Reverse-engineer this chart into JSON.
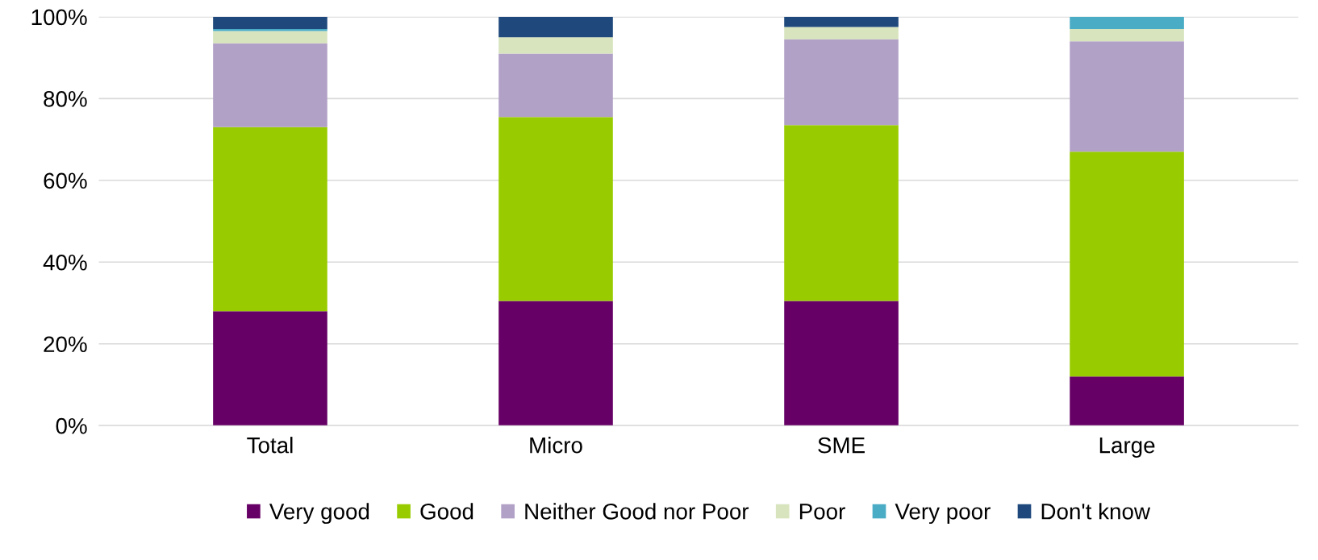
{
  "chart_data": {
    "type": "bar",
    "stacked": true,
    "categories": [
      "Total",
      "Micro",
      "SME",
      "Large"
    ],
    "series": [
      {
        "name": "Very good",
        "color": "#660066",
        "values": [
          28,
          30.5,
          30.5,
          12
        ]
      },
      {
        "name": "Good",
        "color": "#99cc00",
        "values": [
          45,
          45,
          43,
          55
        ]
      },
      {
        "name": "Neither Good nor Poor",
        "color": "#b2a1c7",
        "values": [
          20.5,
          15.5,
          21,
          27
        ]
      },
      {
        "name": "Poor",
        "color": "#d7e4bd",
        "values": [
          3,
          4,
          3,
          3
        ]
      },
      {
        "name": "Very poor",
        "color": "#4bacc6",
        "values": [
          0.5,
          0,
          0,
          3
        ]
      },
      {
        "name": "Don't know",
        "color": "#1f497d",
        "values": [
          3,
          5,
          2.5,
          0
        ]
      }
    ],
    "ylim": [
      0,
      100
    ],
    "yticks": [
      {
        "value": 0,
        "label": "0%"
      },
      {
        "value": 20,
        "label": "20%"
      },
      {
        "value": 40,
        "label": "40%"
      },
      {
        "value": 60,
        "label": "60%"
      },
      {
        "value": 80,
        "label": "80%"
      },
      {
        "value": 100,
        "label": "100%"
      }
    ],
    "grid": "y",
    "legend": "bottom"
  }
}
